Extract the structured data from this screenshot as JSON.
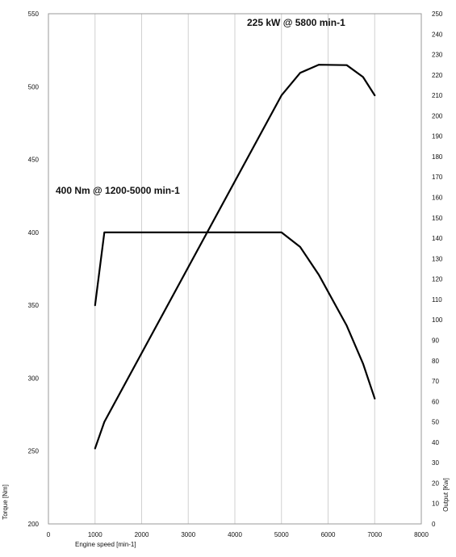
{
  "chart_data": {
    "type": "line",
    "title": "",
    "xlabel": "Engine speed [min-1]",
    "ylabel": "Torque [Nm]",
    "y2label": "Output [Kw]",
    "xlim": [
      0,
      8000
    ],
    "ylim": [
      200,
      550
    ],
    "y2lim": [
      0,
      250
    ],
    "grid": "vertical",
    "x_ticks": [
      "0",
      "1000",
      "2000",
      "3000",
      "4000",
      "5000",
      "6000",
      "7000",
      "8000"
    ],
    "y_ticks": [
      "200",
      "250",
      "300",
      "350",
      "400",
      "450",
      "500",
      "550"
    ],
    "y2_ticks": [
      "0",
      "10",
      "20",
      "30",
      "40",
      "50",
      "60",
      "70",
      "80",
      "90",
      "100",
      "110",
      "120",
      "130",
      "140",
      "150",
      "160",
      "170",
      "180",
      "190",
      "200",
      "210",
      "220",
      "230",
      "240",
      "250"
    ],
    "series": [
      {
        "axis": "left",
        "points": [
          [
            1000,
            350
          ],
          [
            1200,
            400
          ],
          [
            5000,
            400
          ],
          [
            5400,
            390
          ],
          [
            5800,
            371
          ],
          [
            6400,
            336
          ],
          [
            6750,
            310
          ],
          [
            7000,
            286
          ]
        ]
      },
      {
        "axis": "right",
        "points": [
          [
            1000,
            37
          ],
          [
            1200,
            50
          ],
          [
            5000,
            210
          ],
          [
            5400,
            221
          ],
          [
            5800,
            225
          ],
          [
            6400,
            224.8
          ],
          [
            6750,
            219
          ],
          [
            7000,
            210
          ]
        ]
      }
    ],
    "annotations": [
      {
        "text": "225 kW @ 5800 min-1",
        "x": 5800,
        "y": 225,
        "axis": "right"
      },
      {
        "text": "400 Nm @ 1200-5000 min-1",
        "x": 1200,
        "y": 400,
        "axis": "left"
      }
    ]
  }
}
